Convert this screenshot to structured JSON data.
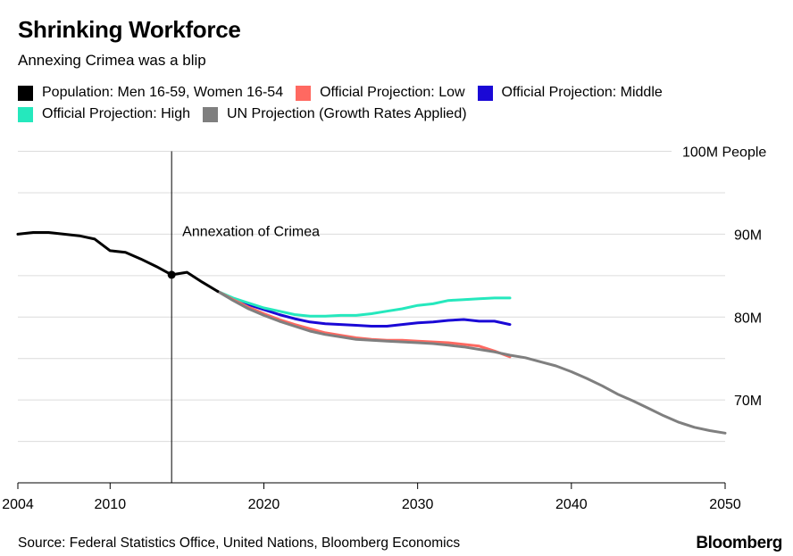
{
  "header": {
    "title": "Shrinking Workforce",
    "subtitle": "Annexing Crimea was a blip"
  },
  "legend": [
    {
      "label": "Population: Men 16-59, Women 16-54",
      "color": "#000000"
    },
    {
      "label": "Official Projection: Low",
      "color": "#ff6961"
    },
    {
      "label": "Official Projection: Middle",
      "color": "#1a08d6"
    },
    {
      "label": "Official Projection: High",
      "color": "#25e8bd"
    },
    {
      "label": "UN Projection (Growth Rates Applied)",
      "color": "#7f7f7f"
    }
  ],
  "footer": {
    "source": "Source: Federal Statistics Office, United Nations, Bloomberg Economics",
    "logo": "Bloomberg"
  },
  "chart_data": {
    "type": "line",
    "xlabel": "",
    "ylabel": "100M People",
    "xlim": [
      2004,
      2050
    ],
    "ylim": [
      60,
      100
    ],
    "x_ticks": [
      2004,
      2010,
      2020,
      2030,
      2040,
      2050
    ],
    "y_ticks": [
      {
        "value": 100,
        "label": "100M People"
      },
      {
        "value": 90,
        "label": "90M"
      },
      {
        "value": 80,
        "label": "80M"
      },
      {
        "value": 70,
        "label": "70M"
      }
    ],
    "grid_values": [
      100,
      95,
      90,
      85,
      80,
      75,
      70,
      65
    ],
    "annotation": {
      "x": 2014,
      "y": 85.1,
      "text": "Annexation of Crimea"
    },
    "series": [
      {
        "name": "Population: Men 16-59, Women 16-54",
        "color": "#000000",
        "x": [
          2004,
          2005,
          2006,
          2007,
          2008,
          2009,
          2010,
          2011,
          2012,
          2013,
          2014,
          2015,
          2016,
          2017
        ],
        "y": [
          90.0,
          90.2,
          90.2,
          90.0,
          89.8,
          89.4,
          88.0,
          87.8,
          87.0,
          86.1,
          85.1,
          85.4,
          84.2,
          83.1
        ]
      },
      {
        "name": "Official Projection: Low",
        "color": "#ff6961",
        "x": [
          2017,
          2018,
          2019,
          2020,
          2021,
          2022,
          2023,
          2024,
          2025,
          2026,
          2027,
          2028,
          2029,
          2030,
          2031,
          2032,
          2033,
          2034,
          2035,
          2036
        ],
        "y": [
          83.1,
          82.1,
          81.2,
          80.4,
          79.7,
          79.1,
          78.6,
          78.1,
          77.8,
          77.5,
          77.3,
          77.2,
          77.2,
          77.1,
          77.0,
          76.9,
          76.7,
          76.5,
          75.9,
          75.2
        ]
      },
      {
        "name": "Official Projection: Middle",
        "color": "#1a08d6",
        "x": [
          2017,
          2018,
          2019,
          2020,
          2021,
          2022,
          2023,
          2024,
          2025,
          2026,
          2027,
          2028,
          2029,
          2030,
          2031,
          2032,
          2033,
          2034,
          2035,
          2036
        ],
        "y": [
          83.1,
          82.2,
          81.5,
          80.9,
          80.3,
          79.8,
          79.4,
          79.2,
          79.1,
          79.0,
          78.9,
          78.9,
          79.1,
          79.3,
          79.4,
          79.6,
          79.7,
          79.5,
          79.5,
          79.1
        ]
      },
      {
        "name": "Official Projection: High",
        "color": "#25e8bd",
        "x": [
          2017,
          2018,
          2019,
          2020,
          2021,
          2022,
          2023,
          2024,
          2025,
          2026,
          2027,
          2028,
          2029,
          2030,
          2031,
          2032,
          2033,
          2034,
          2035,
          2036
        ],
        "y": [
          83.1,
          82.3,
          81.7,
          81.1,
          80.7,
          80.3,
          80.1,
          80.1,
          80.2,
          80.2,
          80.4,
          80.7,
          81.0,
          81.4,
          81.6,
          82.0,
          82.1,
          82.2,
          82.3,
          82.3
        ]
      },
      {
        "name": "UN Projection (Growth Rates Applied)",
        "color": "#7f7f7f",
        "x": [
          2017,
          2018,
          2019,
          2020,
          2021,
          2022,
          2023,
          2024,
          2025,
          2026,
          2027,
          2028,
          2029,
          2030,
          2031,
          2032,
          2033,
          2034,
          2035,
          2036,
          2037,
          2038,
          2039,
          2040,
          2041,
          2042,
          2043,
          2044,
          2045,
          2046,
          2047,
          2048,
          2049,
          2050
        ],
        "y": [
          83.1,
          82.0,
          81.0,
          80.2,
          79.5,
          78.9,
          78.3,
          77.9,
          77.6,
          77.3,
          77.2,
          77.1,
          77.0,
          76.9,
          76.8,
          76.6,
          76.4,
          76.1,
          75.8,
          75.4,
          75.1,
          74.6,
          74.1,
          73.4,
          72.6,
          71.7,
          70.7,
          69.9,
          69.0,
          68.1,
          67.3,
          66.7,
          66.3,
          66.0
        ]
      }
    ]
  }
}
